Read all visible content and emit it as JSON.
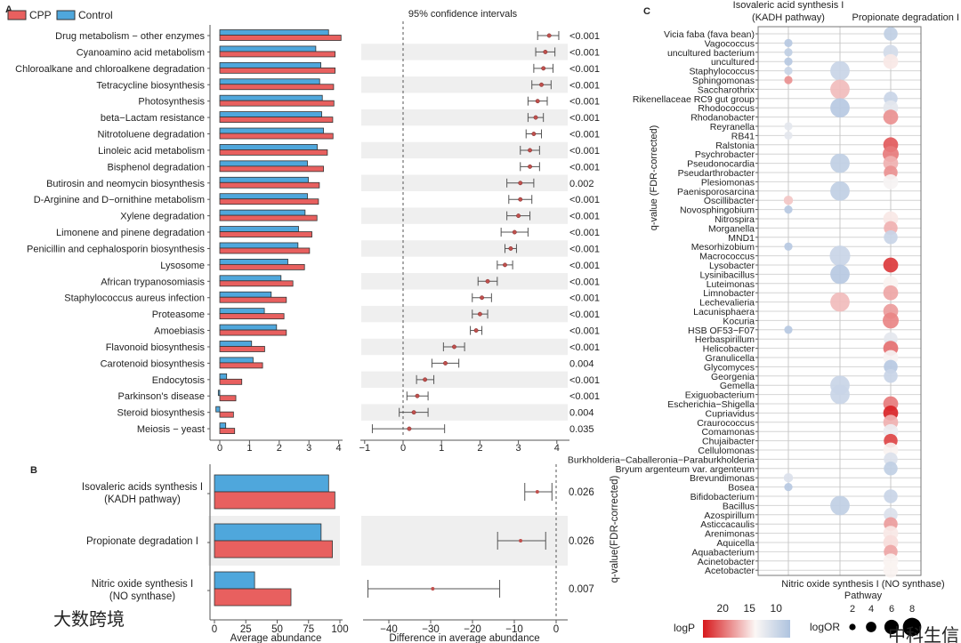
{
  "colors": {
    "cpp": "#e8605f",
    "control": "#4fa7dc",
    "band": "#efefef",
    "ci_point": "#c0504d",
    "logp_high": "#d7191c",
    "logp_mid": "#fbf7f5",
    "logp_low": "#aec3df"
  },
  "watermarks": [
    "大数跨境",
    "中科生信"
  ],
  "chart_data": [
    {
      "panel": "A",
      "type": "bar",
      "legend": [
        "CPP",
        "Control"
      ],
      "xlabel": "",
      "xlim": [
        0,
        4
      ],
      "xticks": [
        "0",
        "1",
        "2",
        "3",
        "4"
      ],
      "categories": [
        "Drug metabolism − other enzymes",
        "Cyanoamino acid metabolism",
        "Chloroalkane and chloroalkene degradation",
        "Tetracycline biosynthesis",
        "Photosynthesis",
        "beta−Lactam resistance",
        "Nitrotoluene degradation",
        "Linoleic acid metabolism",
        "Bisphenol degradation",
        "Butirosin and neomycin biosynthesis",
        "D-Arginine and D−ornithine metabolism",
        "Xylene degradation",
        "Limonene and pinene degradation",
        "Penicillin and cephalosporin biosynthesis",
        "Lysosome",
        "African trypanosomiasis",
        "Staphylococcus aureus infection",
        "Proteasome",
        "Amoebiasis",
        "Flavonoid biosynthesis",
        "Carotenoid biosynthesis",
        "Endocytosis",
        "Parkinson's disease",
        "Steroid biosynthesis",
        "Meiosis − yeast"
      ],
      "series": [
        {
          "name": "Control",
          "values": [
            3.66,
            3.23,
            3.4,
            3.36,
            3.45,
            3.43,
            3.49,
            3.28,
            2.95,
            2.98,
            2.95,
            2.87,
            2.65,
            2.63,
            2.29,
            2.06,
            1.73,
            1.5,
            1.91,
            1.07,
            1.12,
            0.23,
            -0.05,
            -0.13,
            0.2
          ]
        },
        {
          "name": "CPP",
          "values": [
            4.08,
            3.88,
            3.88,
            3.83,
            3.84,
            3.8,
            3.81,
            3.62,
            3.49,
            3.35,
            3.32,
            3.27,
            3.1,
            3.02,
            2.85,
            2.46,
            2.24,
            2.16,
            2.24,
            1.51,
            1.44,
            0.74,
            0.54,
            0.46,
            0.5
          ]
        }
      ],
      "ci": {
        "title": "95% confidence intervals",
        "xlim": [
          -1,
          4
        ],
        "xticks": [
          "−1",
          "0",
          "1",
          "2",
          "3",
          "4"
        ],
        "estimate": [
          3.8,
          3.7,
          3.65,
          3.6,
          3.5,
          3.45,
          3.4,
          3.3,
          3.3,
          3.05,
          3.05,
          3.0,
          2.9,
          2.8,
          2.65,
          2.2,
          2.05,
          2.0,
          1.9,
          1.33,
          1.1,
          0.57,
          0.37,
          0.28,
          0.16
        ],
        "lower": [
          3.5,
          3.45,
          3.4,
          3.35,
          3.25,
          3.25,
          3.2,
          3.05,
          3.05,
          2.7,
          2.75,
          2.7,
          2.55,
          2.65,
          2.45,
          1.95,
          1.8,
          1.8,
          1.75,
          1.05,
          0.75,
          0.35,
          0.1,
          -0.1,
          -0.8
        ],
        "upper": [
          4.05,
          3.95,
          3.9,
          3.85,
          3.75,
          3.65,
          3.6,
          3.55,
          3.55,
          3.4,
          3.35,
          3.3,
          3.25,
          2.95,
          2.85,
          2.45,
          2.3,
          2.2,
          2.05,
          1.6,
          1.45,
          0.8,
          0.65,
          0.65,
          1.08
        ]
      },
      "q_values": [
        "<0.001",
        "<0.001",
        "<0.001",
        "<0.001",
        "<0.001",
        "<0.001",
        "<0.001",
        "<0.001",
        "<0.001",
        "0.002",
        "<0.001",
        "<0.001",
        "<0.001",
        "<0.001",
        "<0.001",
        "<0.001",
        "<0.001",
        "<0.001",
        "<0.001",
        "<0.001",
        "0.004",
        "<0.001",
        "<0.001",
        "0.004",
        "0.035"
      ]
    },
    {
      "panel": "B",
      "type": "bar",
      "categories": [
        [
          "Isovaleric acids synthesis I",
          "(KADH pathway)"
        ],
        [
          "Propionate degradation I"
        ],
        [
          "Nitric oxide synthesis I",
          "(NO synthase)"
        ]
      ],
      "xlabel": "Average abundance",
      "xlim": [
        0,
        100
      ],
      "xticks": [
        "0",
        "25",
        "50",
        "75",
        "100"
      ],
      "series": [
        {
          "name": "Control",
          "values": [
            91,
            85,
            32
          ]
        },
        {
          "name": "CPP",
          "values": [
            96,
            94,
            61
          ]
        }
      ],
      "ci": {
        "xlabel": "Difference in average abundance",
        "xlim": [
          -47,
          2
        ],
        "xticks": [
          "−40",
          "−30",
          "−20",
          "−10",
          "0"
        ],
        "tick_values": [
          -40,
          -30,
          -20,
          -10,
          0
        ],
        "estimate": [
          -4.5,
          -8.5,
          -29.5
        ],
        "lower": [
          -7.5,
          -14,
          -45
        ],
        "upper": [
          -1,
          -2.5,
          -13.5
        ]
      },
      "q_values": [
        "0.026",
        "0.026",
        "0.007"
      ],
      "ylabel": "q-value(FDR-corrected)"
    },
    {
      "panel": "C",
      "type": "scatter",
      "ylabel": "q-value (FDR-corrected)",
      "xlabel": "Pathway",
      "pathways": [
        [
          "Isovaleric acid synthesis I",
          "(KADH pathway)"
        ],
        [
          "Nitric oxide synthesis I (NO synthase)"
        ],
        [
          "Propionate degradation I"
        ]
      ],
      "taxa": [
        "Vicia faba (fava bean)",
        "Vagococcus",
        "uncultured bacterium",
        "uncultured",
        "Staphylococcus",
        "Sphingomonas",
        "Saccharothrix",
        "Rikenellaceae RC9 gut group",
        "Rhodococcus",
        "Rhodanobacter",
        "Reyranella",
        "RB41",
        "Ralstonia",
        "Psychrobacter",
        "Pseudonocardia",
        "Pseudarthrobacter",
        "Plesiomonas",
        "Paenisporosarcina",
        "Oscillibacter",
        "Novosphingobium",
        "Nitrospira",
        "Morganella",
        "MND1",
        "Mesorhizobium",
        "Macrococcus",
        "Lysobacter",
        "Lysinibacillus",
        "Luteimonas",
        "Limnobacter",
        "Lechevalieria",
        "Lacunisphaera",
        "Kocuria",
        "HSB OF53−F07",
        "Herbaspirillum",
        "Helicobacter",
        "Granulicella",
        "Glycomyces",
        "Georgenia",
        "Gemella",
        "Exiguobacterium",
        "Escherichia−Shigella",
        "Cupriavidus",
        "Craurococcus",
        "Comamonas",
        "Chujaibacter",
        "Cellulomonas",
        "Burkholderia−Caballeronia−Paraburkholderia",
        "Bryum argenteum var. argenteum",
        "Brevundimonas",
        "Bosea",
        "Bifidobacterium",
        "Bacillus",
        "Azospirillum",
        "Asticcacaulis",
        "Arenimonas",
        "Aquicella",
        "Aquabacterium",
        "Acinetobacter",
        "Acetobacter"
      ],
      "point_fields": [
        "taxon_index",
        "pathway_index",
        "logP",
        "logOR"
      ],
      "points": [
        [
          0,
          2,
          9,
          5
        ],
        [
          1,
          0,
          8.5,
          2.5
        ],
        [
          2,
          0,
          9,
          2.5
        ],
        [
          2,
          2,
          10,
          5.5
        ],
        [
          3,
          0,
          8.5,
          2.5
        ],
        [
          3,
          2,
          13,
          5.5
        ],
        [
          4,
          0,
          9.5,
          2.5
        ],
        [
          4,
          1,
          9.5,
          7.5
        ],
        [
          5,
          0,
          17,
          2.5
        ],
        [
          6,
          1,
          15,
          7.5
        ],
        [
          7,
          2,
          9.5,
          5
        ],
        [
          8,
          1,
          8.5,
          7.5
        ],
        [
          8,
          2,
          11,
          5.5
        ],
        [
          9,
          2,
          17,
          5.5
        ],
        [
          10,
          0,
          11,
          2.5
        ],
        [
          11,
          0,
          11,
          2.5
        ],
        [
          12,
          2,
          19.5,
          5.5
        ],
        [
          13,
          2,
          18,
          6
        ],
        [
          14,
          1,
          9,
          7.5
        ],
        [
          14,
          2,
          15.5,
          5.5
        ],
        [
          15,
          2,
          17,
          5
        ],
        [
          16,
          2,
          12,
          5.5
        ],
        [
          17,
          1,
          9,
          7.5
        ],
        [
          18,
          0,
          14.5,
          3
        ],
        [
          19,
          0,
          8.5,
          2.5
        ],
        [
          20,
          2,
          13,
          5.5
        ],
        [
          21,
          2,
          15.5,
          5
        ],
        [
          22,
          2,
          9.5,
          5
        ],
        [
          23,
          0,
          8.5,
          2.5
        ],
        [
          24,
          1,
          9.5,
          8
        ],
        [
          25,
          2,
          21,
          5.5
        ],
        [
          26,
          1,
          8.5,
          7.5
        ],
        [
          27,
          2,
          12.5,
          5.5
        ],
        [
          28,
          2,
          16,
          5.5
        ],
        [
          29,
          1,
          15,
          7.5
        ],
        [
          30,
          2,
          16.5,
          5.5
        ],
        [
          31,
          2,
          17.5,
          6
        ],
        [
          32,
          0,
          8.5,
          2.5
        ],
        [
          33,
          2,
          11,
          5
        ],
        [
          34,
          2,
          18.5,
          5.5
        ],
        [
          35,
          2,
          12,
          5.5
        ],
        [
          36,
          2,
          8.5,
          5
        ],
        [
          37,
          2,
          9.5,
          5
        ],
        [
          38,
          1,
          9.5,
          7.5
        ],
        [
          39,
          1,
          9.5,
          7.5
        ],
        [
          40,
          2,
          18,
          5.5
        ],
        [
          41,
          2,
          22,
          5.5
        ],
        [
          42,
          2,
          15.5,
          5.5
        ],
        [
          43,
          2,
          11.5,
          5.5
        ],
        [
          44,
          2,
          20.5,
          5
        ],
        [
          45,
          2,
          12.5,
          5.5
        ],
        [
          46,
          2,
          10.5,
          5
        ],
        [
          47,
          2,
          9,
          5
        ],
        [
          48,
          0,
          10.5,
          3
        ],
        [
          49,
          0,
          8.5,
          2.5
        ],
        [
          50,
          2,
          9.5,
          5
        ],
        [
          51,
          1,
          9,
          7.5
        ],
        [
          52,
          2,
          10.5,
          5
        ],
        [
          53,
          2,
          16.5,
          5
        ],
        [
          54,
          2,
          13,
          5.5
        ],
        [
          55,
          2,
          13.5,
          5.5
        ],
        [
          56,
          2,
          16,
          5
        ],
        [
          57,
          2,
          12.5,
          5.5
        ],
        [
          58,
          2,
          12.5,
          5.5
        ]
      ],
      "legend": {
        "color_title": "logP",
        "color_ticks": [
          "20",
          "15",
          "10"
        ],
        "color_tick_values": [
          20,
          15,
          10
        ],
        "color_range": [
          23.7,
          7.3
        ],
        "size_title": "logOR",
        "size_ticks": [
          "2",
          "4",
          "6",
          "8"
        ],
        "size_values": [
          2,
          4,
          6,
          8
        ]
      }
    }
  ],
  "panel_labels": [
    "A",
    "B",
    "C"
  ]
}
